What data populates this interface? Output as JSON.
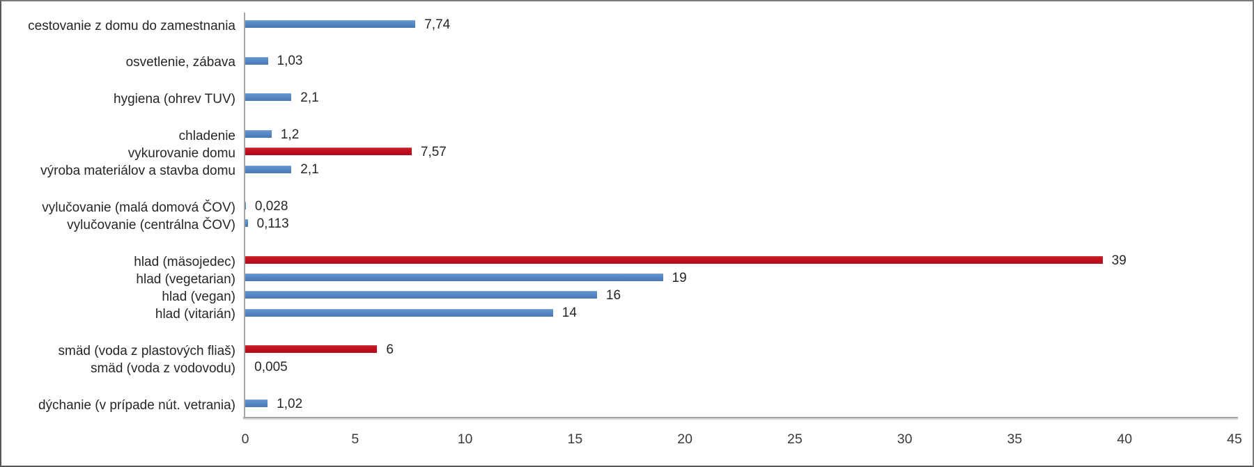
{
  "frame": {
    "background": "#ffffff",
    "border_color": "#7a7a7a"
  },
  "chart_data": {
    "type": "bar",
    "orientation": "horizontal",
    "title": "",
    "xlabel": "",
    "ylabel": "",
    "xlim": [
      0,
      45
    ],
    "x_ticks": [
      "0",
      "5",
      "10",
      "15",
      "20",
      "25",
      "30",
      "35",
      "40",
      "45"
    ],
    "grid": false,
    "legend_position": "none",
    "colors": {
      "blue": "#5285C4",
      "red": "#BF0E1E"
    },
    "groups": [
      {
        "items": [
          {
            "label": "cestovanie z domu do zamestnania",
            "value": 7.74,
            "value_label": "7,74",
            "color": "blue"
          }
        ]
      },
      {
        "items": [
          {
            "label": "osvetlenie, zábava",
            "value": 1.03,
            "value_label": "1,03",
            "color": "blue"
          }
        ]
      },
      {
        "items": [
          {
            "label": "hygiena (ohrev TUV)",
            "value": 2.1,
            "value_label": "2,1",
            "color": "blue"
          }
        ]
      },
      {
        "items": [
          {
            "label": "chladenie",
            "value": 1.2,
            "value_label": "1,2",
            "color": "blue"
          },
          {
            "label": "vykurovanie domu",
            "value": 7.57,
            "value_label": "7,57",
            "color": "red"
          },
          {
            "label": "výroba materiálov a stavba domu",
            "value": 2.1,
            "value_label": "2,1",
            "color": "blue"
          }
        ]
      },
      {
        "items": [
          {
            "label": "vylučovanie (malá domová ČOV)",
            "value": 0.028,
            "value_label": "0,028",
            "color": "blue"
          },
          {
            "label": "vylučovanie (centrálna ČOV)",
            "value": 0.113,
            "value_label": "0,113",
            "color": "blue"
          }
        ]
      },
      {
        "items": [
          {
            "label": "hlad (mäsojedec)",
            "value": 39,
            "value_label": "39",
            "color": "red"
          },
          {
            "label": "hlad (vegetarian)",
            "value": 19,
            "value_label": "19",
            "color": "blue"
          },
          {
            "label": "hlad (vegan)",
            "value": 16,
            "value_label": "16",
            "color": "blue"
          },
          {
            "label": "hlad (vitarián)",
            "value": 14,
            "value_label": "14",
            "color": "blue"
          }
        ]
      },
      {
        "items": [
          {
            "label": "smäd (voda z plastových fliaš)",
            "value": 6,
            "value_label": "6",
            "color": "red"
          },
          {
            "label": "smäd (voda z vodovodu)",
            "value": 0.005,
            "value_label": "0,005",
            "color": "blue"
          }
        ]
      },
      {
        "items": [
          {
            "label": "dýchanie (v prípade nút. vetrania)",
            "value": 1.02,
            "value_label": "1,02",
            "color": "blue"
          }
        ]
      }
    ]
  }
}
